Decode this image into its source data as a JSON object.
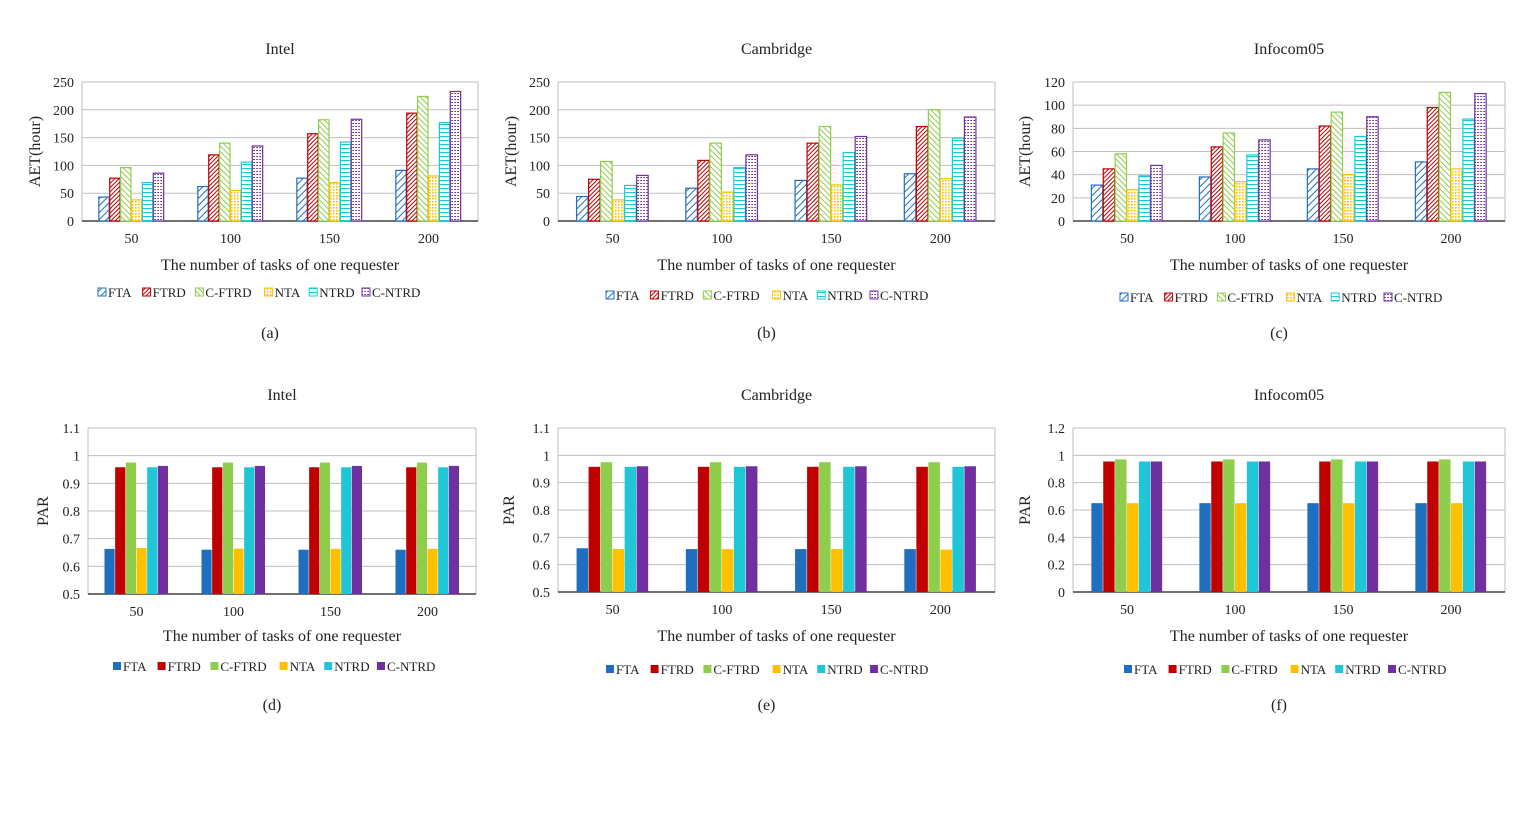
{
  "series_colors": {
    "FTA": "#1f6fc1",
    "FTRD": "#c00000",
    "C-FTRD": "#8fce4c",
    "NTA": "#ffc000",
    "NTRD": "#1fc7d6",
    "C-NTRD": "#7030a0"
  },
  "chart_data": [
    {
      "id": "a",
      "type": "bar",
      "style": "hatched",
      "title": "Intel",
      "caption": "(a)",
      "xlabel": "The number of tasks of one requester",
      "ylabel": "AET(hour)",
      "categories": [
        "50",
        "100",
        "150",
        "200"
      ],
      "ylim": [
        0,
        250
      ],
      "yticks": [
        "0",
        "50",
        "100",
        "150",
        "200",
        "250"
      ],
      "grid": true,
      "legend": "bottom",
      "series": [
        {
          "name": "FTA",
          "values": [
            43,
            62,
            77,
            91
          ]
        },
        {
          "name": "FTRD",
          "values": [
            77,
            119,
            157,
            194
          ]
        },
        {
          "name": "C-FTRD",
          "values": [
            96,
            140,
            182,
            224
          ]
        },
        {
          "name": "NTA",
          "values": [
            38,
            55,
            69,
            81
          ]
        },
        {
          "name": "NTRD",
          "values": [
            69,
            106,
            142,
            177
          ]
        },
        {
          "name": "C-NTRD",
          "values": [
            86,
            135,
            183,
            233
          ]
        }
      ]
    },
    {
      "id": "b",
      "type": "bar",
      "style": "hatched",
      "title": "Cambridge",
      "caption": "(b)",
      "xlabel": "The number of tasks of one requester",
      "ylabel": "AET(hour)",
      "categories": [
        "50",
        "100",
        "150",
        "200"
      ],
      "ylim": [
        0,
        250
      ],
      "yticks": [
        "0",
        "50",
        "100",
        "150",
        "200",
        "250"
      ],
      "grid": true,
      "legend": "bottom",
      "series": [
        {
          "name": "FTA",
          "values": [
            44,
            59,
            73,
            85
          ]
        },
        {
          "name": "FTRD",
          "values": [
            75,
            109,
            140,
            170
          ]
        },
        {
          "name": "C-FTRD",
          "values": [
            107,
            140,
            170,
            200
          ]
        },
        {
          "name": "NTA",
          "values": [
            38,
            52,
            65,
            76
          ]
        },
        {
          "name": "NTRD",
          "values": [
            64,
            96,
            123,
            149
          ]
        },
        {
          "name": "C-NTRD",
          "values": [
            82,
            119,
            152,
            187
          ]
        }
      ]
    },
    {
      "id": "c",
      "type": "bar",
      "style": "hatched",
      "title": "Infocom05",
      "caption": "(c)",
      "xlabel": "The number of tasks of one requester",
      "ylabel": "AET(hour)",
      "categories": [
        "50",
        "100",
        "150",
        "200"
      ],
      "ylim": [
        0,
        120
      ],
      "yticks": [
        "0",
        "20",
        "40",
        "60",
        "80",
        "100",
        "120"
      ],
      "grid": true,
      "legend": "bottom",
      "series": [
        {
          "name": "FTA",
          "values": [
            31,
            38,
            45,
            51
          ]
        },
        {
          "name": "FTRD",
          "values": [
            45,
            64,
            82,
            98
          ]
        },
        {
          "name": "C-FTRD",
          "values": [
            58,
            76,
            94,
            111
          ]
        },
        {
          "name": "NTA",
          "values": [
            27,
            34,
            40,
            45
          ]
        },
        {
          "name": "NTRD",
          "values": [
            39,
            57,
            73,
            88
          ]
        },
        {
          "name": "C-NTRD",
          "values": [
            48,
            70,
            90,
            110
          ]
        }
      ]
    },
    {
      "id": "d",
      "type": "bar",
      "style": "solid",
      "title": "Intel",
      "caption": "(d)",
      "xlabel": "The number of tasks of one requester",
      "ylabel": "PAR",
      "categories": [
        "50",
        "100",
        "150",
        "200"
      ],
      "ylim": [
        0.5,
        1.1
      ],
      "yticks": [
        "0.5",
        "0.6",
        "0.7",
        "0.8",
        "0.9",
        "1",
        "1.1"
      ],
      "grid": true,
      "legend": "bottom",
      "series": [
        {
          "name": "FTA",
          "values": [
            0.663,
            0.66,
            0.66,
            0.66
          ]
        },
        {
          "name": "FTRD",
          "values": [
            0.958,
            0.958,
            0.958,
            0.958
          ]
        },
        {
          "name": "C-FTRD",
          "values": [
            0.975,
            0.975,
            0.975,
            0.975
          ]
        },
        {
          "name": "NTA",
          "values": [
            0.666,
            0.664,
            0.663,
            0.663
          ]
        },
        {
          "name": "NTRD",
          "values": [
            0.958,
            0.958,
            0.958,
            0.958
          ]
        },
        {
          "name": "C-NTRD",
          "values": [
            0.963,
            0.963,
            0.963,
            0.963
          ]
        }
      ]
    },
    {
      "id": "e",
      "type": "bar",
      "style": "solid",
      "title": "Cambridge",
      "caption": "(e)",
      "xlabel": "The number of tasks of one requester",
      "ylabel": "PAR",
      "categories": [
        "50",
        "100",
        "150",
        "200"
      ],
      "ylim": [
        0.5,
        1.1
      ],
      "yticks": [
        "0.5",
        "0.6",
        "0.7",
        "0.8",
        "0.9",
        "1",
        "1.1"
      ],
      "grid": true,
      "legend": "bottom",
      "series": [
        {
          "name": "FTA",
          "values": [
            0.66,
            0.657,
            0.657,
            0.657
          ]
        },
        {
          "name": "FTRD",
          "values": [
            0.958,
            0.958,
            0.958,
            0.958
          ]
        },
        {
          "name": "C-FTRD",
          "values": [
            0.975,
            0.975,
            0.975,
            0.975
          ]
        },
        {
          "name": "NTA",
          "values": [
            0.657,
            0.657,
            0.657,
            0.655
          ]
        },
        {
          "name": "NTRD",
          "values": [
            0.958,
            0.958,
            0.958,
            0.958
          ]
        },
        {
          "name": "C-NTRD",
          "values": [
            0.96,
            0.96,
            0.96,
            0.96
          ]
        }
      ]
    },
    {
      "id": "f",
      "type": "bar",
      "style": "solid",
      "title": "Infocom05",
      "caption": "(f)",
      "xlabel": "The number of tasks of one requester",
      "ylabel": "PAR",
      "categories": [
        "50",
        "100",
        "150",
        "200"
      ],
      "ylim": [
        0,
        1.2
      ],
      "yticks": [
        "0",
        "0.2",
        "0.4",
        "0.6",
        "0.8",
        "1",
        "1.2"
      ],
      "grid": true,
      "legend": "bottom",
      "series": [
        {
          "name": "FTA",
          "values": [
            0.65,
            0.65,
            0.65,
            0.65
          ]
        },
        {
          "name": "FTRD",
          "values": [
            0.955,
            0.955,
            0.955,
            0.955
          ]
        },
        {
          "name": "C-FTRD",
          "values": [
            0.97,
            0.97,
            0.97,
            0.97
          ]
        },
        {
          "name": "NTA",
          "values": [
            0.65,
            0.65,
            0.65,
            0.65
          ]
        },
        {
          "name": "NTRD",
          "values": [
            0.955,
            0.955,
            0.955,
            0.955
          ]
        },
        {
          "name": "C-NTRD",
          "values": [
            0.955,
            0.955,
            0.955,
            0.955
          ]
        }
      ]
    }
  ]
}
